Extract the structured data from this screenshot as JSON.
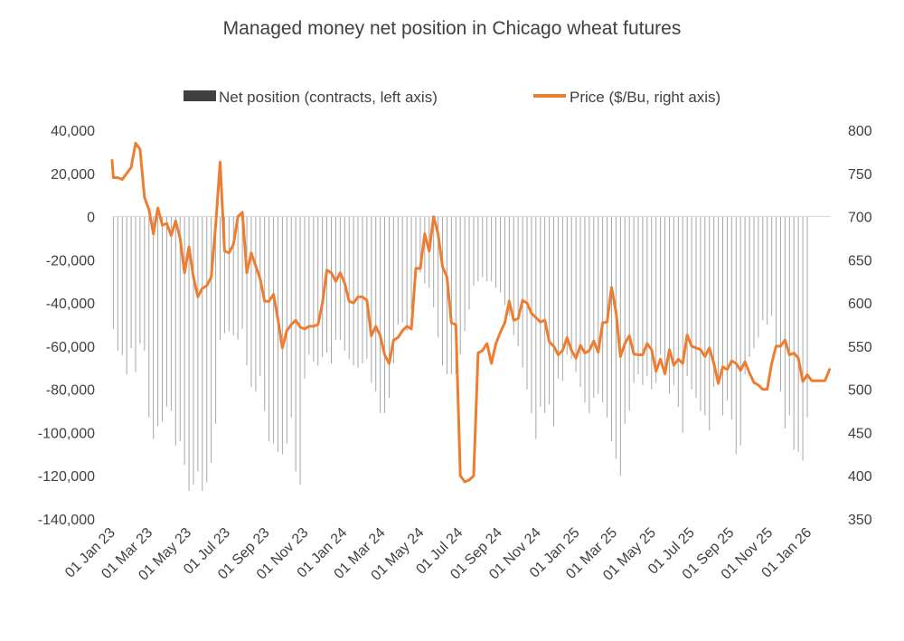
{
  "chart_data": {
    "type": "bar+line",
    "title": "Managed money net position in Chicago wheat futures",
    "legend_position": "top",
    "grid": false,
    "colors": {
      "bars": "#a6a6a6",
      "legend_bar": "#404040",
      "line": "#ed7d31",
      "text": "#404040"
    },
    "y_left": {
      "min": -140000,
      "max": 40000,
      "step": 20000,
      "tick_labels": [
        "40,000",
        "20,000",
        "0",
        "-20,000",
        "-40,000",
        "-60,000",
        "-80,000",
        "-100,000",
        "-120,000",
        "-140,000"
      ]
    },
    "y_right": {
      "min": 350,
      "max": 800,
      "step": 50,
      "tick_labels": [
        "800",
        "750",
        "700",
        "650",
        "600",
        "550",
        "500",
        "450",
        "400",
        "350"
      ]
    },
    "x_tick_labels": [
      "01 Jan 23",
      "01 Mar 23",
      "01 May 23",
      "01 Jul 23",
      "01 Sep 23",
      "01 Nov 23",
      "01 Jan 24",
      "01 Mar 24",
      "01 May 24",
      "01 Jul 24",
      "01 Sep 24",
      "01 Nov 24",
      "01 Jan 25",
      "01 Mar 25",
      "01 May 25",
      "01 Jul 25",
      "01 Sep 25",
      "01 Nov 25",
      "01 Jan 26"
    ],
    "x_range": [
      "2023-01-01",
      "2026-02-05"
    ],
    "series": [
      {
        "name": "Net position (contracts, left axis)",
        "type": "bar",
        "axis": "left",
        "frequency": "weekly",
        "start": "2023-01-03",
        "values": [
          -52000,
          -62000,
          -64000,
          -73000,
          -61000,
          -72000,
          -59000,
          -62000,
          -93000,
          -103000,
          -97000,
          -95000,
          -88000,
          -90000,
          -106000,
          -104000,
          -115000,
          -127000,
          -124000,
          -118000,
          -127000,
          -123000,
          -114000,
          -96000,
          -57000,
          -54000,
          -53000,
          -55000,
          -57000,
          -52000,
          -69000,
          -79000,
          -81000,
          -74000,
          -90000,
          -104000,
          -105000,
          -109000,
          -110000,
          -105000,
          -93000,
          -118000,
          -124000,
          -75000,
          -64000,
          -67000,
          -69000,
          -65000,
          -63000,
          -68000,
          -57000,
          -57000,
          -62000,
          -66000,
          -69000,
          -70000,
          -68000,
          -66000,
          -77000,
          -81000,
          -91000,
          -91000,
          -84000,
          -68000,
          -50000,
          -49000,
          -53000,
          -43000,
          -28000,
          -26000,
          -31000,
          -33000,
          -42000,
          -56000,
          -69000,
          -73000,
          -73000,
          -73000,
          -64000,
          -53000,
          -43000,
          -32000,
          -30000,
          -28000,
          -30000,
          -30000,
          -33000,
          -35000,
          -41000,
          -46000,
          -55000,
          -60000,
          -70000,
          -80000,
          -91000,
          -103000,
          -88000,
          -91000,
          -87000,
          -97000,
          -75000,
          -76000,
          -64000,
          -66000,
          -72000,
          -79000,
          -86000,
          -91000,
          -84000,
          -82000,
          -86000,
          -93000,
          -104000,
          -112000,
          -120000,
          -96000,
          -90000,
          -77000,
          -73000,
          -78000,
          -74000,
          -80000,
          -77000,
          -64000,
          -71000,
          -82000,
          -78000,
          -88000,
          -100000,
          -74000,
          -80000,
          -84000,
          -90000,
          -92000,
          -99000,
          -79000,
          -78000,
          -92000,
          -85000,
          -94000,
          -110000,
          -106000,
          -73000,
          -65000,
          -61000,
          -56000,
          -48000,
          -50000,
          -46000,
          -62000,
          -81000,
          -98000,
          -92000,
          -108000,
          -109000,
          -113000,
          -93000
        ]
      },
      {
        "name": "Price ($/Bu, right axis)",
        "type": "line",
        "axis": "right",
        "points": [
          [
            "2023-01-01",
            765
          ],
          [
            "2023-01-03",
            745
          ],
          [
            "2023-01-10",
            745
          ],
          [
            "2023-01-17",
            743
          ],
          [
            "2023-01-24",
            750
          ],
          [
            "2023-01-31",
            757
          ],
          [
            "2023-02-07",
            785
          ],
          [
            "2023-02-14",
            778
          ],
          [
            "2023-02-21",
            722
          ],
          [
            "2023-02-28",
            708
          ],
          [
            "2023-03-07",
            680
          ],
          [
            "2023-03-14",
            710
          ],
          [
            "2023-03-21",
            690
          ],
          [
            "2023-03-28",
            692
          ],
          [
            "2023-04-04",
            678
          ],
          [
            "2023-04-11",
            695
          ],
          [
            "2023-04-18",
            675
          ],
          [
            "2023-04-25",
            635
          ],
          [
            "2023-05-02",
            665
          ],
          [
            "2023-05-09",
            630
          ],
          [
            "2023-05-16",
            607
          ],
          [
            "2023-05-23",
            617
          ],
          [
            "2023-05-30",
            620
          ],
          [
            "2023-06-06",
            630
          ],
          [
            "2023-06-13",
            690
          ],
          [
            "2023-06-20",
            763
          ],
          [
            "2023-06-27",
            660
          ],
          [
            "2023-07-04",
            658
          ],
          [
            "2023-07-11",
            668
          ],
          [
            "2023-07-18",
            700
          ],
          [
            "2023-07-25",
            705
          ],
          [
            "2023-08-01",
            635
          ],
          [
            "2023-08-08",
            658
          ],
          [
            "2023-08-15",
            643
          ],
          [
            "2023-08-22",
            628
          ],
          [
            "2023-08-29",
            602
          ],
          [
            "2023-09-05",
            602
          ],
          [
            "2023-09-12",
            610
          ],
          [
            "2023-09-19",
            581
          ],
          [
            "2023-09-26",
            548
          ],
          [
            "2023-10-03",
            568
          ],
          [
            "2023-10-10",
            575
          ],
          [
            "2023-10-17",
            580
          ],
          [
            "2023-10-24",
            572
          ],
          [
            "2023-10-31",
            570
          ],
          [
            "2023-11-07",
            573
          ],
          [
            "2023-11-14",
            573
          ],
          [
            "2023-11-21",
            575
          ],
          [
            "2023-11-28",
            600
          ],
          [
            "2023-12-05",
            638
          ],
          [
            "2023-12-12",
            635
          ],
          [
            "2023-12-19",
            625
          ],
          [
            "2023-12-26",
            635
          ],
          [
            "2024-01-02",
            623
          ],
          [
            "2024-01-09",
            602
          ],
          [
            "2024-01-16",
            600
          ],
          [
            "2024-01-23",
            607
          ],
          [
            "2024-01-30",
            607
          ],
          [
            "2024-02-06",
            603
          ],
          [
            "2024-02-13",
            562
          ],
          [
            "2024-02-20",
            573
          ],
          [
            "2024-02-27",
            562
          ],
          [
            "2024-03-05",
            540
          ],
          [
            "2024-03-12",
            530
          ],
          [
            "2024-03-19",
            557
          ],
          [
            "2024-03-26",
            560
          ],
          [
            "2024-04-02",
            568
          ],
          [
            "2024-04-09",
            573
          ],
          [
            "2024-04-16",
            570
          ],
          [
            "2024-04-23",
            640
          ],
          [
            "2024-04-30",
            640
          ],
          [
            "2024-05-07",
            680
          ],
          [
            "2024-05-14",
            660
          ],
          [
            "2024-05-21",
            700
          ],
          [
            "2024-05-28",
            680
          ],
          [
            "2024-06-04",
            642
          ],
          [
            "2024-06-11",
            630
          ],
          [
            "2024-06-18",
            577
          ],
          [
            "2024-06-25",
            575
          ],
          [
            "2024-07-02",
            400
          ],
          [
            "2024-07-09",
            393
          ],
          [
            "2024-07-16",
            395
          ],
          [
            "2024-07-23",
            400
          ],
          [
            "2024-07-30",
            542
          ],
          [
            "2024-08-06",
            545
          ],
          [
            "2024-08-13",
            553
          ],
          [
            "2024-08-20",
            530
          ],
          [
            "2024-08-27",
            553
          ],
          [
            "2024-09-03",
            566
          ],
          [
            "2024-09-10",
            577
          ],
          [
            "2024-09-17",
            602
          ],
          [
            "2024-09-24",
            580
          ],
          [
            "2024-10-01",
            582
          ],
          [
            "2024-10-08",
            603
          ],
          [
            "2024-10-15",
            600
          ],
          [
            "2024-10-22",
            588
          ],
          [
            "2024-10-29",
            583
          ],
          [
            "2024-11-05",
            578
          ],
          [
            "2024-11-12",
            580
          ],
          [
            "2024-11-19",
            555
          ],
          [
            "2024-11-26",
            550
          ],
          [
            "2024-12-03",
            540
          ],
          [
            "2024-12-10",
            545
          ],
          [
            "2024-12-17",
            560
          ],
          [
            "2024-12-24",
            545
          ],
          [
            "2024-12-31",
            536
          ],
          [
            "2025-01-07",
            551
          ],
          [
            "2025-01-14",
            542
          ],
          [
            "2025-01-21",
            545
          ],
          [
            "2025-01-28",
            556
          ],
          [
            "2025-02-04",
            543
          ],
          [
            "2025-02-11",
            577
          ],
          [
            "2025-02-18",
            578
          ],
          [
            "2025-02-25",
            618
          ],
          [
            "2025-03-04",
            590
          ],
          [
            "2025-03-11",
            538
          ],
          [
            "2025-03-18",
            553
          ],
          [
            "2025-03-25",
            562
          ],
          [
            "2025-04-01",
            541
          ],
          [
            "2025-04-08",
            540
          ],
          [
            "2025-04-15",
            540
          ],
          [
            "2025-04-22",
            553
          ],
          [
            "2025-04-29",
            546
          ],
          [
            "2025-05-06",
            521
          ],
          [
            "2025-05-13",
            535
          ],
          [
            "2025-05-20",
            518
          ],
          [
            "2025-05-27",
            546
          ],
          [
            "2025-06-03",
            528
          ],
          [
            "2025-06-10",
            535
          ],
          [
            "2025-06-17",
            530
          ],
          [
            "2025-06-24",
            563
          ],
          [
            "2025-07-01",
            550
          ],
          [
            "2025-07-08",
            548
          ],
          [
            "2025-07-15",
            546
          ],
          [
            "2025-07-22",
            538
          ],
          [
            "2025-07-29",
            548
          ],
          [
            "2025-08-05",
            530
          ],
          [
            "2025-08-12",
            507
          ],
          [
            "2025-08-19",
            526
          ],
          [
            "2025-08-26",
            523
          ],
          [
            "2025-09-02",
            533
          ],
          [
            "2025-09-09",
            530
          ],
          [
            "2025-09-16",
            522
          ],
          [
            "2025-09-23",
            532
          ],
          [
            "2025-09-30",
            519
          ],
          [
            "2025-10-07",
            508
          ],
          [
            "2025-10-14",
            505
          ],
          [
            "2025-10-21",
            500
          ],
          [
            "2025-10-28",
            500
          ],
          [
            "2025-11-04",
            530
          ],
          [
            "2025-11-11",
            550
          ],
          [
            "2025-11-18",
            550
          ],
          [
            "2025-11-25",
            557
          ],
          [
            "2025-12-02",
            540
          ],
          [
            "2025-12-09",
            542
          ],
          [
            "2025-12-16",
            536
          ],
          [
            "2025-12-23",
            509
          ],
          [
            "2025-12-30",
            517
          ],
          [
            "2026-01-06",
            510
          ],
          [
            "2026-01-13",
            510
          ],
          [
            "2026-01-20",
            510
          ],
          [
            "2026-01-27",
            510
          ],
          [
            "2026-02-03",
            523
          ]
        ]
      }
    ]
  }
}
